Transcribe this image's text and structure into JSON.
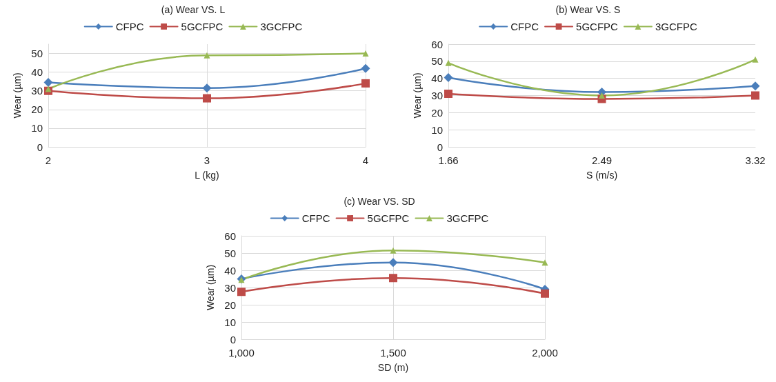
{
  "chart_data": [
    {
      "type": "line",
      "title": "(a) Wear VS. L",
      "xlabel": "L (kg)",
      "ylabel": "Wear (µm)",
      "x": [
        2,
        3,
        4
      ],
      "xlim": [
        2,
        4
      ],
      "xticks": [
        2,
        3,
        4
      ],
      "ylim": [
        0,
        55
      ],
      "yticks": [
        0,
        10,
        20,
        30,
        40,
        50
      ],
      "grid": true,
      "legend": "top",
      "series": [
        {
          "name": "CFPC",
          "color": "#4a7ebb",
          "marker": "diamond",
          "values": [
            34.5,
            31.5,
            42
          ]
        },
        {
          "name": "5GCFPC",
          "color": "#be4b48",
          "marker": "square",
          "values": [
            30,
            26,
            34
          ]
        },
        {
          "name": "3GCFPC",
          "color": "#98b954",
          "marker": "triangle",
          "values": [
            31,
            49,
            50
          ]
        }
      ]
    },
    {
      "type": "line",
      "title": "(b) Wear VS. S",
      "xlabel": "S (m/s)",
      "ylabel": "Wear (µm)",
      "x": [
        1.66,
        2.49,
        3.32
      ],
      "xlim": [
        1.66,
        3.32
      ],
      "xticks": [
        1.66,
        2.49,
        3.32
      ],
      "ylim": [
        0,
        60
      ],
      "yticks": [
        0,
        10,
        20,
        30,
        40,
        50,
        60
      ],
      "grid": "y",
      "legend": "top",
      "series": [
        {
          "name": "CFPC",
          "color": "#4a7ebb",
          "marker": "diamond",
          "values": [
            40.5,
            32,
            35.5
          ]
        },
        {
          "name": "5GCFPC",
          "color": "#be4b48",
          "marker": "square",
          "values": [
            31,
            28,
            30
          ]
        },
        {
          "name": "3GCFPC",
          "color": "#98b954",
          "marker": "triangle",
          "values": [
            49,
            30,
            51
          ]
        }
      ]
    },
    {
      "type": "line",
      "title": "(c) Wear VS. SD",
      "xlabel": "SD (m)",
      "ylabel": "Wear (µm)",
      "x": [
        1000,
        1500,
        2000
      ],
      "xlim": [
        1000,
        2000
      ],
      "xticks": [
        {
          "value": 1000,
          "label": "1,000"
        },
        {
          "value": 1500,
          "label": "1,500"
        },
        {
          "value": 2000,
          "label": "2,000"
        }
      ],
      "ylim": [
        0,
        60
      ],
      "yticks": [
        0,
        10,
        20,
        30,
        40,
        50,
        60
      ],
      "grid": true,
      "legend": "top",
      "series": [
        {
          "name": "CFPC",
          "color": "#4a7ebb",
          "marker": "diamond",
          "values": [
            35,
            44.5,
            29
          ]
        },
        {
          "name": "5GCFPC",
          "color": "#be4b48",
          "marker": "square",
          "values": [
            27.5,
            35.5,
            26.5
          ]
        },
        {
          "name": "3GCFPC",
          "color": "#98b954",
          "marker": "triangle",
          "values": [
            34.5,
            51.5,
            44.5
          ]
        }
      ]
    }
  ]
}
